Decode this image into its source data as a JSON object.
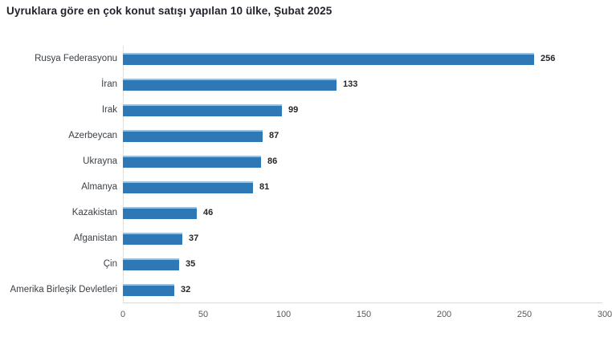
{
  "title": "Uyruklara göre en çok konut satışı yapılan 10 ülke, Şubat 2025",
  "colors": {
    "bar": "#2e79b5",
    "bar_top_edge": "#9abedb",
    "axis_line": "#d9d9d9",
    "title_text": "#21242c",
    "category_text": "#3b4045",
    "value_text": "#24262b",
    "tick_text": "#595959",
    "background": "#ffffff"
  },
  "chart_data": {
    "type": "bar",
    "orientation": "horizontal",
    "title": "Uyruklara göre en çok konut satışı yapılan 10 ülke, Şubat 2025",
    "categories": [
      "Rusya Federasyonu",
      "İran",
      "Irak",
      "Azerbeycan",
      "Ukrayna",
      "Almanya",
      "Kazakistan",
      "Afganistan",
      "Çin",
      "Amerika Birleşik Devletleri"
    ],
    "values": [
      256,
      133,
      99,
      87,
      86,
      81,
      46,
      37,
      35,
      32
    ],
    "xlabel": "",
    "ylabel": "",
    "xlim": [
      0,
      300
    ],
    "xticks": [
      0,
      50,
      100,
      150,
      200,
      250,
      300
    ],
    "grid": false,
    "legend": false,
    "data_labels": true
  }
}
